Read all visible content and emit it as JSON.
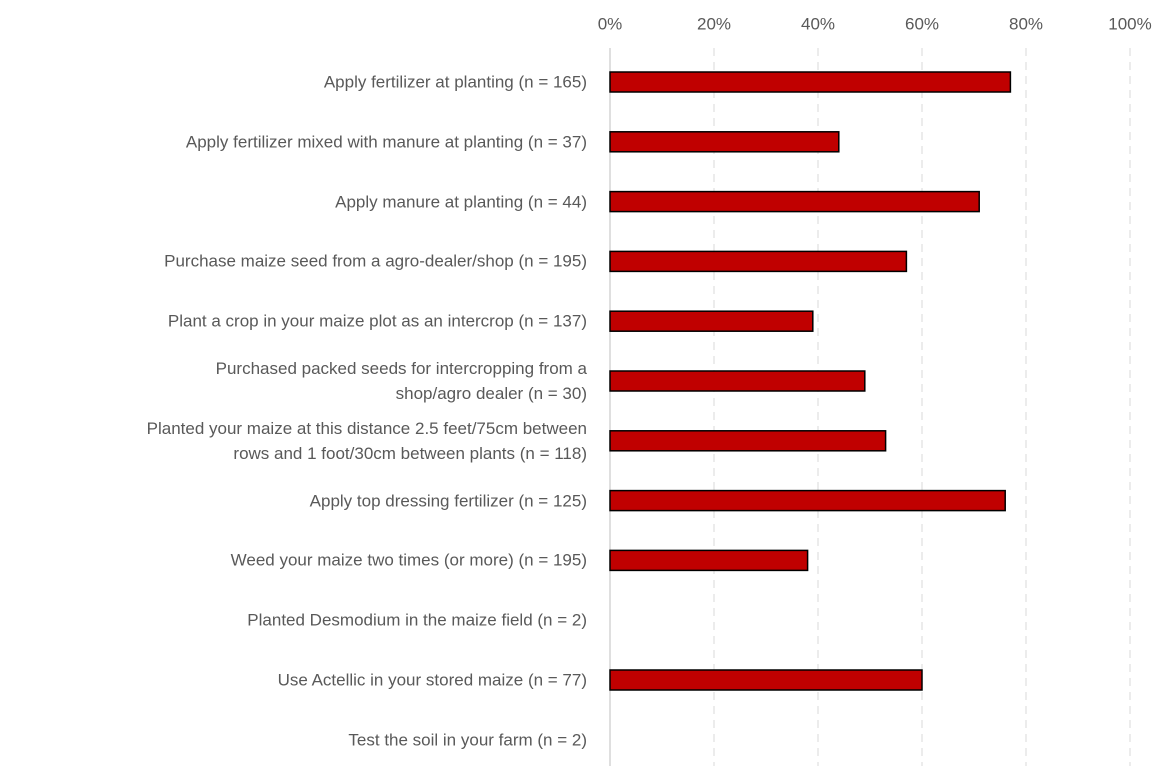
{
  "chart_data": {
    "type": "hbar",
    "categories": [
      "Apply fertilizer at planting (n = 165)",
      "Apply fertilizer mixed with manure at planting (n = 37)",
      "Apply manure at planting (n = 44)",
      "Purchase maize seed from a agro-dealer/shop (n = 195)",
      "Plant a crop in your maize plot as an intercrop (n = 137)",
      "Purchased packed seeds for intercropping from a\nshop/agro dealer (n = 30)",
      "Planted your maize at this distance 2.5 feet/75cm between\nrows and 1 foot/30cm between plants (n = 118)",
      "Apply top dressing fertilizer (n = 125)",
      "Weed your maize two times (or more) (n = 195)",
      "Planted Desmodium in the maize field (n = 2)",
      "Use Actellic in your stored maize (n = 77)",
      "Test the soil in your farm (n = 2)"
    ],
    "values": [
      77,
      44,
      71,
      57,
      39,
      49,
      53,
      76,
      38,
      0,
      60,
      0
    ],
    "color": "#c00000",
    "xlim": [
      0,
      100
    ],
    "xticks": [
      {
        "value": 0,
        "label": "0%"
      },
      {
        "value": 20,
        "label": "20%"
      },
      {
        "value": 40,
        "label": "40%"
      },
      {
        "value": 60,
        "label": "60%"
      },
      {
        "value": 80,
        "label": "80%"
      },
      {
        "value": 100,
        "label": "100%"
      }
    ],
    "grid": true
  }
}
